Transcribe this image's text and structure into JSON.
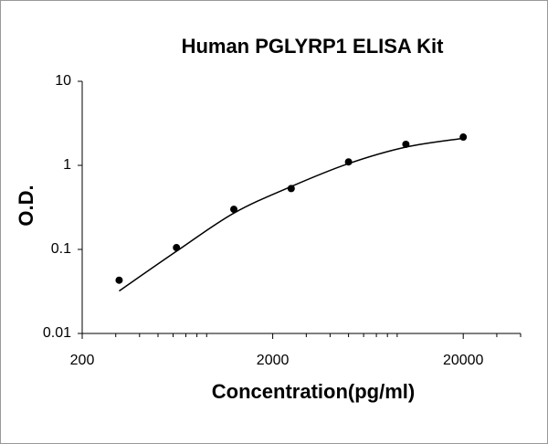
{
  "chart_data": {
    "type": "scatter",
    "title": "Human PGLYRP1 ELISA Kit",
    "x_label": "Concentration(pg/ml)",
    "y_label": "O.D.",
    "x": [
      312.5,
      625,
      1250,
      2500,
      5000,
      10000,
      20000
    ],
    "series": [
      {
        "color": "#000000",
        "values": [
          0.043,
          0.105,
          0.3,
          0.53,
          1.1,
          1.78,
          2.17
        ]
      }
    ],
    "fit": {
      "color": "#000000",
      "x": [
        312.5,
        625,
        1250,
        2500,
        5000,
        10000,
        20000
      ],
      "values": [
        0.032,
        0.095,
        0.27,
        0.56,
        1.05,
        1.65,
        2.1
      ]
    },
    "xlog": true,
    "ylog": true,
    "xlim": [
      200,
      40000
    ],
    "xticks": [
      200,
      2000,
      20000
    ],
    "xminor": [
      300,
      400,
      500,
      600,
      700,
      800,
      900,
      3000,
      4000,
      5000,
      6000,
      7000,
      8000,
      9000,
      30000,
      40000
    ],
    "ylim": [
      0.01,
      10
    ],
    "yticks": [
      0.01,
      0.1,
      1,
      10
    ]
  }
}
